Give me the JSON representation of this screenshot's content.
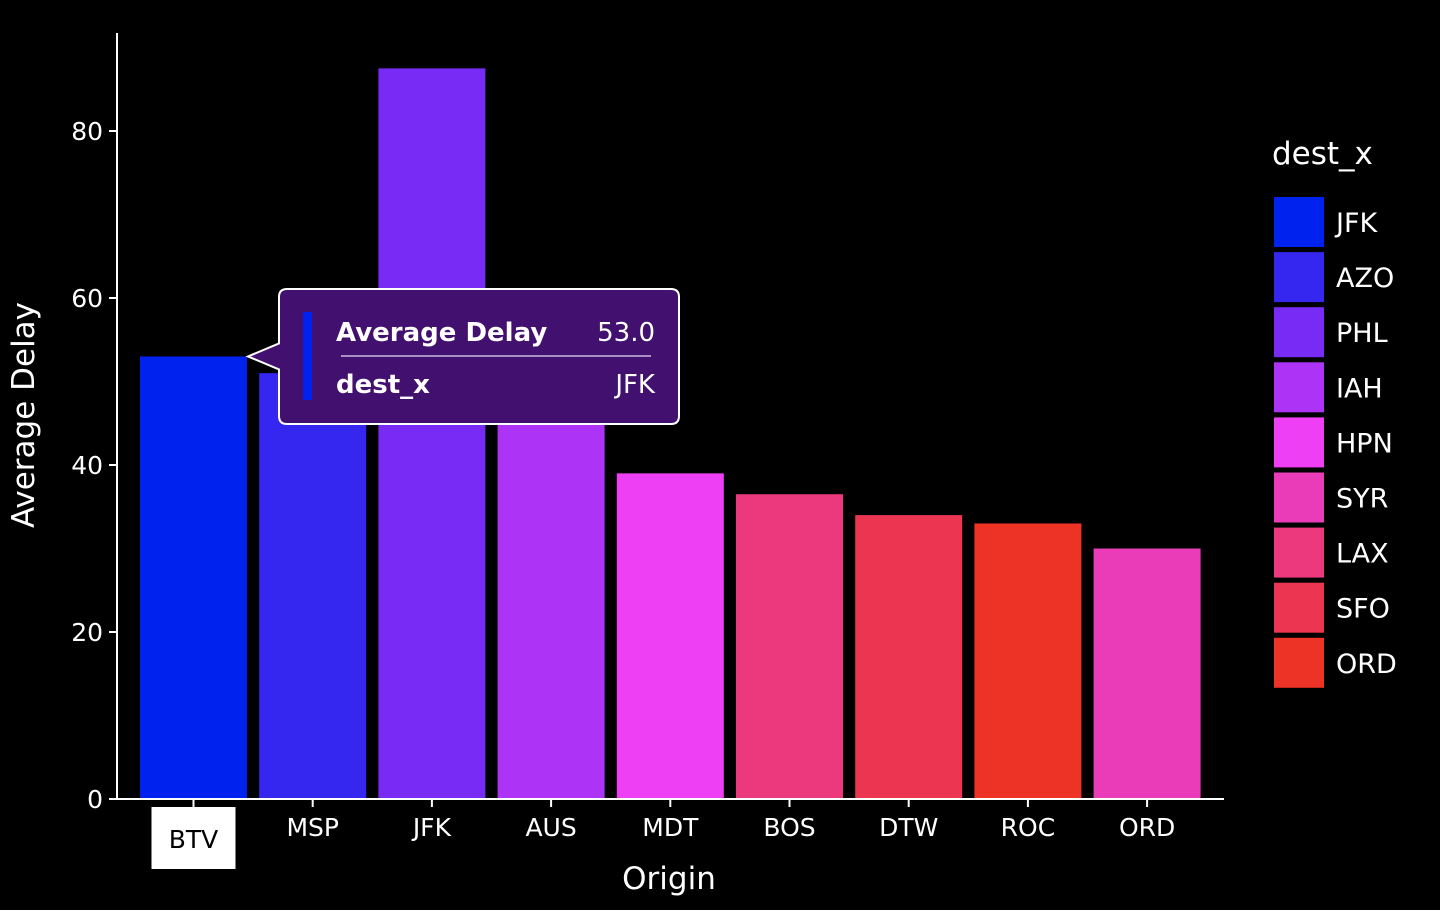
{
  "chart_data": {
    "type": "bar",
    "xlabel": "Origin",
    "ylabel": "Average Delay",
    "ylim": [
      0,
      92
    ],
    "yticks": [
      0,
      20,
      40,
      60,
      80
    ],
    "grid": false,
    "legend_title": "dest_x",
    "legend_position": "right",
    "categories": [
      "BTV",
      "MSP",
      "JFK",
      "AUS",
      "MDT",
      "BOS",
      "DTW",
      "ROC",
      "ORD"
    ],
    "values": [
      53.0,
      51.0,
      87.5,
      45.0,
      39.0,
      36.5,
      34.0,
      33.0,
      30.0
    ],
    "bar_dest": [
      "JFK",
      "AZO",
      "PHL",
      "IAH",
      "HPN",
      "LAX",
      "SFO",
      "ORD",
      "SYR"
    ],
    "legend": [
      {
        "label": "JFK",
        "color": "#0022ee"
      },
      {
        "label": "AZO",
        "color": "#3526f0"
      },
      {
        "label": "PHL",
        "color": "#772bf5"
      },
      {
        "label": "IAH",
        "color": "#ad33f7"
      },
      {
        "label": "HPN",
        "color": "#ee3ff5"
      },
      {
        "label": "SYR",
        "color": "#ea3bb8"
      },
      {
        "label": "LAX",
        "color": "#ec397e"
      },
      {
        "label": "SFO",
        "color": "#ec3550"
      },
      {
        "label": "ORD",
        "color": "#ec3326"
      }
    ],
    "highlighted_category": "BTV",
    "tooltip": {
      "rows": [
        {
          "key": "Average Delay",
          "value": "53.0"
        },
        {
          "key": "dest_x",
          "value": "JFK"
        }
      ],
      "marker_color": "#0022ee",
      "background": "#42106e"
    }
  }
}
